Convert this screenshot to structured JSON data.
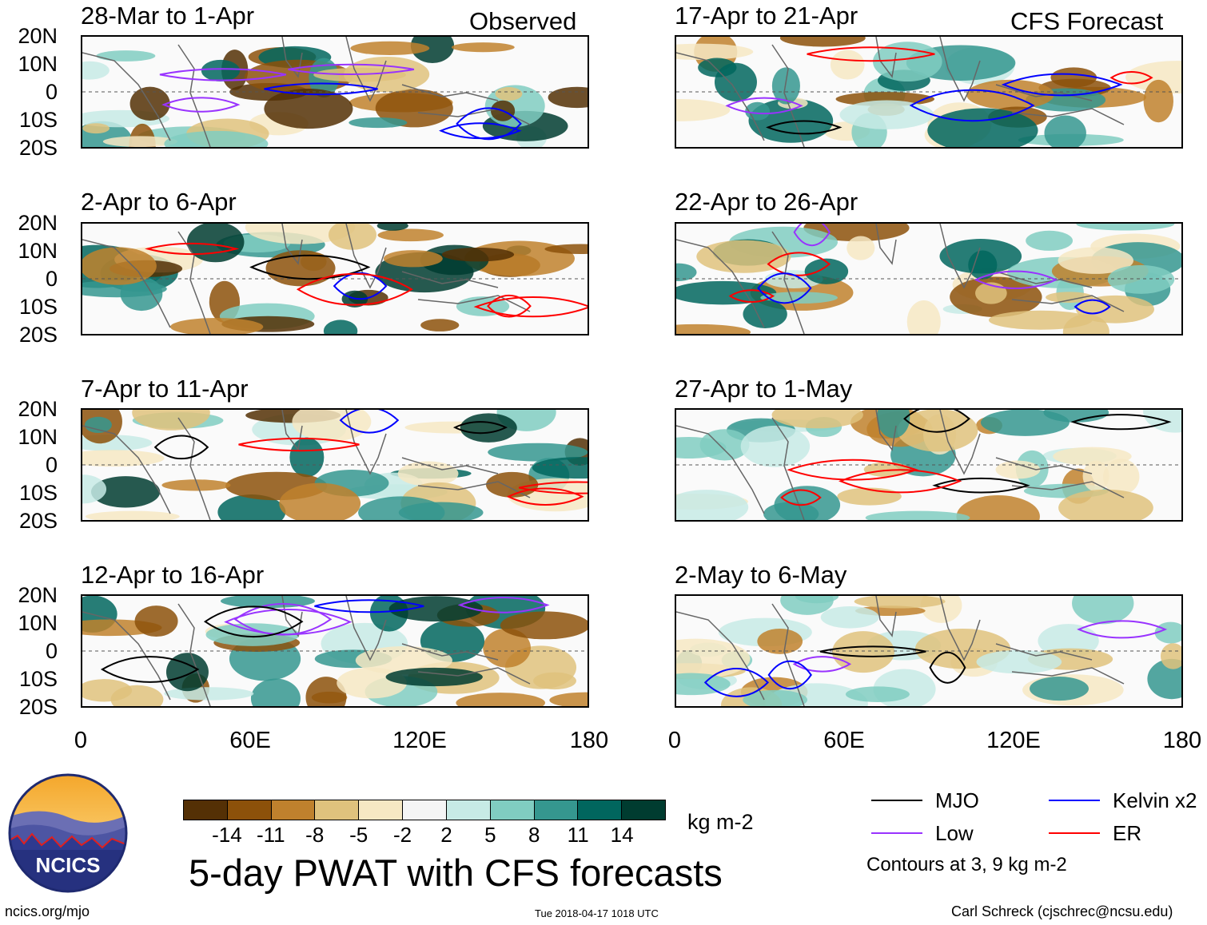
{
  "panels": [
    {
      "title": "28-Mar to 1-Apr",
      "corner": "Observed"
    },
    {
      "title": "2-Apr to 6-Apr",
      "corner": ""
    },
    {
      "title": "7-Apr to 11-Apr",
      "corner": ""
    },
    {
      "title": "12-Apr to 16-Apr",
      "corner": ""
    },
    {
      "title": "17-Apr to 21-Apr",
      "corner": "CFS Forecast"
    },
    {
      "title": "22-Apr to 26-Apr",
      "corner": ""
    },
    {
      "title": "27-Apr to 1-May",
      "corner": ""
    },
    {
      "title": "2-May to 6-May",
      "corner": ""
    }
  ],
  "axes": {
    "lat_labels": [
      "20N",
      "10N",
      "0",
      "10S",
      "20S"
    ],
    "lon_labels": [
      "0",
      "60E",
      "120E",
      "180"
    ]
  },
  "colorbar": {
    "labels": [
      "-14",
      "-11",
      "-8",
      "-5",
      "-2",
      "2",
      "5",
      "8",
      "11",
      "14"
    ],
    "colors": [
      "#543005",
      "#8c510a",
      "#bf812d",
      "#dfc27d",
      "#f6e8c3",
      "#f5f5f5",
      "#c7eae5",
      "#80cdc1",
      "#35978f",
      "#01665e",
      "#003c30"
    ],
    "units": "kg m-2"
  },
  "title": "5-day PWAT with CFS forecasts",
  "legend": {
    "items": [
      {
        "label": "MJO",
        "color": "#000000"
      },
      {
        "label": "Kelvin x2",
        "color": "#0000ff"
      },
      {
        "label": "Low",
        "color": "#9933ff"
      },
      {
        "label": "ER",
        "color": "#ff0000"
      }
    ],
    "note": "Contours at 3, 9 kg m-2"
  },
  "logo_text": "NCICS",
  "footer": {
    "left": "ncics.org/mjo",
    "center": "Tue 2018-04-17 1018 UTC",
    "right": "Carl Schreck (cjschrec@ncsu.edu)"
  }
}
